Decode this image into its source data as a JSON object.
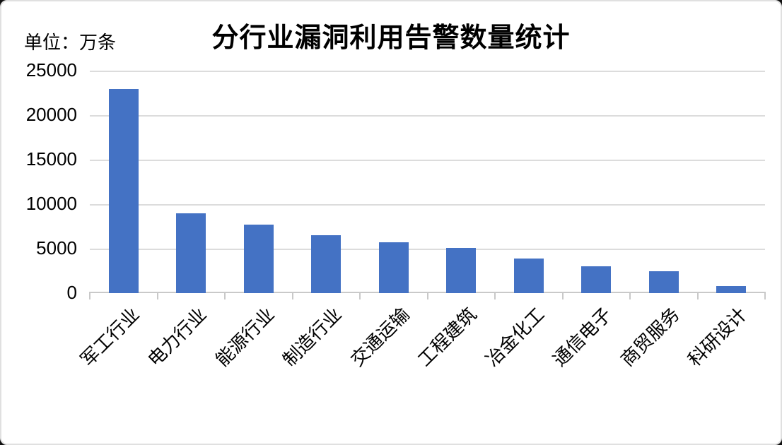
{
  "chart_data": {
    "type": "bar",
    "title": "分行业漏洞利用告警数量统计",
    "unit_label": "单位：万条",
    "categories": [
      "军工行业",
      "电力行业",
      "能源行业",
      "制造行业",
      "交通运输",
      "工程建筑",
      "冶金化工",
      "通信电子",
      "商贸服务",
      "科研设计"
    ],
    "values": [
      22900,
      9000,
      7700,
      6500,
      5700,
      5100,
      3900,
      3000,
      2500,
      800
    ],
    "xlabel": "",
    "ylabel": "",
    "ylim": [
      0,
      25000
    ],
    "ytick_interval": 5000,
    "yticks": [
      0,
      5000,
      10000,
      15000,
      20000,
      25000
    ],
    "grid": true,
    "legend": "none",
    "data_labels": "none",
    "bar_color": "#4472C4",
    "gridline_color": "#DCDCDC",
    "axis_color": "#C9C9C9",
    "text_color": "#000000",
    "background_color": "#FFFFFF"
  }
}
